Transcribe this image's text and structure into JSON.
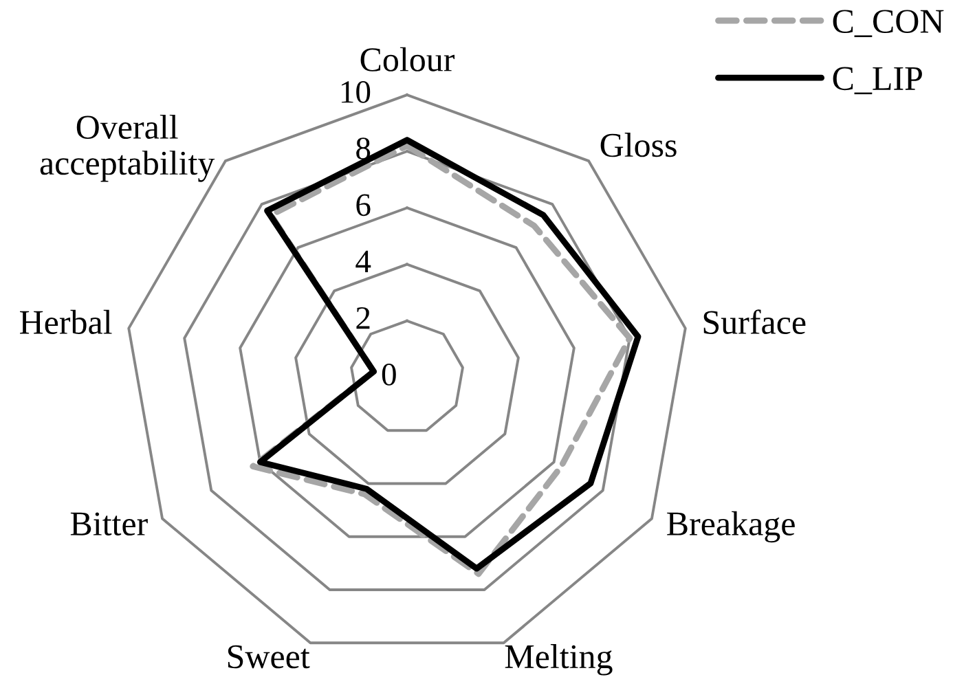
{
  "chart_data": {
    "type": "radar",
    "categories": [
      "Colour",
      "Gloss",
      "Surface",
      "Breakage",
      "Melting",
      "Sweet",
      "Bitter",
      "Herbal",
      "Overall\nacceptability"
    ],
    "series": [
      {
        "name": "C_CON",
        "color": "#a6a6a6",
        "line_style": "dashed",
        "values": [
          8.2,
          7.0,
          8.0,
          6.3,
          7.4,
          4.4,
          6.3,
          1.2,
          7.5
        ]
      },
      {
        "name": "C_LIP",
        "color": "#000000",
        "line_style": "solid",
        "values": [
          8.4,
          7.5,
          8.3,
          7.5,
          7.2,
          4.2,
          6.0,
          1.2,
          7.7
        ]
      }
    ],
    "ylim": [
      0,
      10
    ],
    "yticks": [
      0,
      2,
      4,
      6,
      8,
      10
    ],
    "grid": true,
    "legend": "top right"
  }
}
